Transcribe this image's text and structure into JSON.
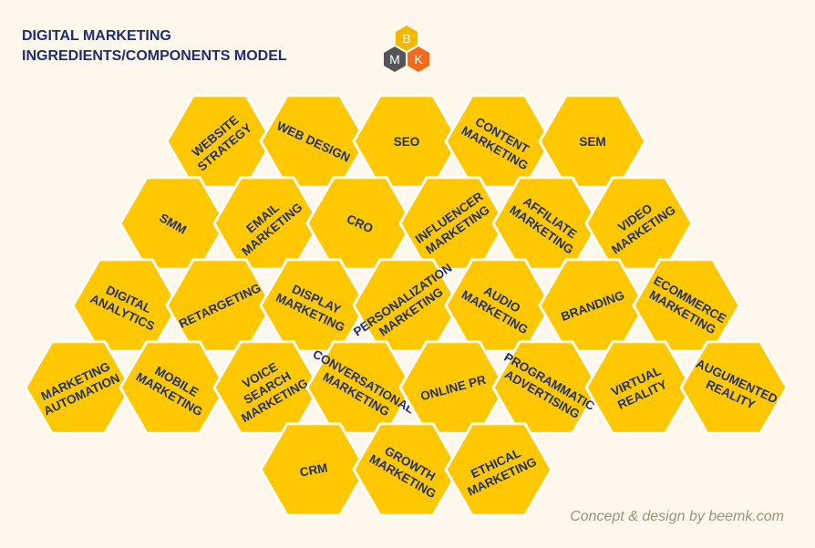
{
  "title": {
    "line1": "DIGITAL MARKETING",
    "line2": "INGREDIENTS/COMPONENTS MODEL"
  },
  "logo": {
    "letters": [
      "B",
      "M",
      "K"
    ],
    "colors": {
      "top": "#f5b800",
      "left": "#555555",
      "right": "#f26a1b"
    }
  },
  "credit": "Concept & design by beemk.com",
  "colors": {
    "hex_fill": "#ffc800",
    "hex_stroke": "#ffffff",
    "label": "#1f2f6b",
    "background": "#fdf7ec"
  },
  "components": [
    {
      "id": "website-strategy",
      "lines": [
        "WEBSITE",
        "STRATEGY"
      ]
    },
    {
      "id": "web-design",
      "lines": [
        "WEB DESIGN"
      ]
    },
    {
      "id": "seo",
      "lines": [
        "SEO"
      ]
    },
    {
      "id": "content-marketing",
      "lines": [
        "CONTENT",
        "MARKETING"
      ]
    },
    {
      "id": "sem",
      "lines": [
        "SEM"
      ]
    },
    {
      "id": "smm",
      "lines": [
        "SMM"
      ]
    },
    {
      "id": "email-marketing",
      "lines": [
        "EMAIL",
        "MARKETING"
      ]
    },
    {
      "id": "cro",
      "lines": [
        "CRO"
      ]
    },
    {
      "id": "influencer-marketing",
      "lines": [
        "INFLUENCER",
        "MARKETING"
      ]
    },
    {
      "id": "affiliate-marketing",
      "lines": [
        "AFFILIATE",
        "MARKETING"
      ]
    },
    {
      "id": "video-marketing",
      "lines": [
        "VIDEO",
        "MARKETING"
      ]
    },
    {
      "id": "digital-analytics",
      "lines": [
        "DIGITAL",
        "ANALYTICS"
      ]
    },
    {
      "id": "retargeting",
      "lines": [
        "RETARGETING"
      ]
    },
    {
      "id": "display-marketing",
      "lines": [
        "DISPLAY",
        "MARKETING"
      ]
    },
    {
      "id": "personalization-marketing",
      "lines": [
        "PERSONALIZATION",
        "MARKETING"
      ]
    },
    {
      "id": "audio-marketing",
      "lines": [
        "AUDIO",
        "MARKETING"
      ]
    },
    {
      "id": "branding",
      "lines": [
        "BRANDING"
      ]
    },
    {
      "id": "ecommerce-marketing",
      "lines": [
        "ECOMMERCE",
        "MARKETING"
      ]
    },
    {
      "id": "marketing-automation",
      "lines": [
        "MARKETING",
        "AUTOMATION"
      ]
    },
    {
      "id": "mobile-marketing",
      "lines": [
        "MOBILE",
        "MARKETING"
      ]
    },
    {
      "id": "voice-search-marketing",
      "lines": [
        "VOICE",
        "SEARCH",
        "MARKETING"
      ]
    },
    {
      "id": "conversational-marketing",
      "lines": [
        "CONVERSATIONAL",
        "MARKETING"
      ]
    },
    {
      "id": "online-pr",
      "lines": [
        "ONLINE PR"
      ]
    },
    {
      "id": "programmatic-advertising",
      "lines": [
        "PROGRAMMATIC",
        "ADVERTISING"
      ]
    },
    {
      "id": "virtual-reality",
      "lines": [
        "VIRTUAL",
        "REALITY"
      ]
    },
    {
      "id": "augumented-reality",
      "lines": [
        "AUGUMENTED",
        "REALITY"
      ]
    },
    {
      "id": "crm",
      "lines": [
        "CRM"
      ]
    },
    {
      "id": "growth-marketing",
      "lines": [
        "GROWTH",
        "MARKETING"
      ]
    },
    {
      "id": "ethical-marketing",
      "lines": [
        "ETHICAL",
        "MARKETING"
      ]
    }
  ]
}
